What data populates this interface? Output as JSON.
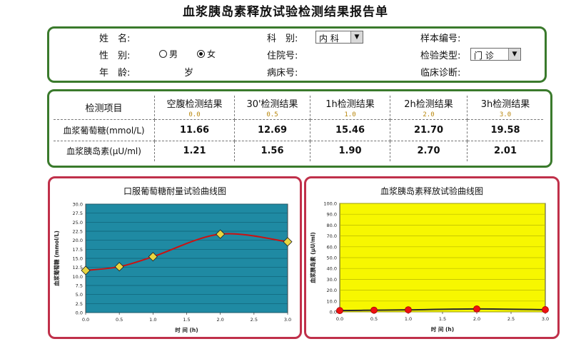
{
  "title": "血浆胰岛素释放试验检测结果报告单",
  "form": {
    "name_label": "姓　名:",
    "sex_label": "性　别:",
    "age_label": "年　龄:",
    "age_unit": "岁",
    "male": "男",
    "female": "女",
    "sex_selected": "女",
    "dept_label": "科　别:",
    "dept_value": "内 科",
    "inpatient_label": "住院号:",
    "bed_label": "病床号:",
    "sample_label": "样本编号:",
    "exam_type_label": "检验类型:",
    "exam_type_value": "门  诊",
    "diagnosis_label": "临床诊断:"
  },
  "table": {
    "header_item": "检测项目",
    "columns": [
      {
        "label": "空腹检测结果",
        "time": "0.0"
      },
      {
        "label": "30'检测结果",
        "time": "0.5"
      },
      {
        "label": "1h检测结果",
        "time": "1.0"
      },
      {
        "label": "2h检测结果",
        "time": "2.0"
      },
      {
        "label": "3h检测结果",
        "time": "3.0"
      }
    ],
    "rows": [
      {
        "name": "血浆葡萄糖(mmol/L)",
        "values": [
          "11.66",
          "12.69",
          "15.46",
          "21.70",
          "19.58"
        ]
      },
      {
        "name": "血浆胰岛素(μU/ml)",
        "values": [
          "1.21",
          "1.56",
          "1.90",
          "2.70",
          "2.01"
        ]
      }
    ]
  },
  "colors": {
    "glucose_plot_bg": "#1f8aa3",
    "glucose_line": "#cc1111",
    "glucose_marker": "#e8d640",
    "insulin_plot_bg": "#f7f700",
    "insulin_line": "#2b2b2b",
    "insulin_marker": "#ee1111",
    "chart_border": "#c0304a",
    "form_border": "#3a7a2c"
  },
  "chart_data": [
    {
      "type": "line",
      "title": "口服葡萄糖耐量试验曲线图",
      "xlabel": "时  间  (h)",
      "ylabel": "血浆葡萄糖  (mmol/L)",
      "x": [
        0.0,
        0.5,
        1.0,
        2.0,
        3.0
      ],
      "series": [
        {
          "values": [
            11.66,
            12.69,
            15.46,
            21.7,
            19.58
          ]
        }
      ],
      "xlim": [
        0.0,
        3.0
      ],
      "ylim": [
        0.0,
        30.0
      ],
      "x_ticks": [
        "0.0",
        "0.5",
        "1.0",
        "1.5",
        "2.0",
        "2.5",
        "3.0"
      ],
      "y_ticks": [
        "0.0",
        "2.5",
        "5.0",
        "7.5",
        "10.0",
        "12.5",
        "15.0",
        "17.5",
        "20.0",
        "22.5",
        "25.0",
        "27.5",
        "30.0"
      ],
      "grid": true
    },
    {
      "type": "line",
      "title": "血浆胰岛素释放试验曲线图",
      "xlabel": "时  间  (h)",
      "ylabel": "血浆胰岛素  (μU/ml)",
      "x": [
        0.0,
        0.5,
        1.0,
        2.0,
        3.0
      ],
      "series": [
        {
          "values": [
            1.21,
            1.56,
            1.9,
            2.7,
            2.01
          ]
        }
      ],
      "xlim": [
        0.0,
        3.0
      ],
      "ylim": [
        0.0,
        100.0
      ],
      "x_ticks": [
        "0.0",
        "0.5",
        "1.0",
        "1.5",
        "2.0",
        "2.5",
        "3.0"
      ],
      "y_ticks": [
        "0.0",
        "10.0",
        "20.0",
        "30.0",
        "40.0",
        "50.0",
        "60.0",
        "70.0",
        "80.0",
        "90.0",
        "100.0"
      ],
      "grid": true
    }
  ]
}
